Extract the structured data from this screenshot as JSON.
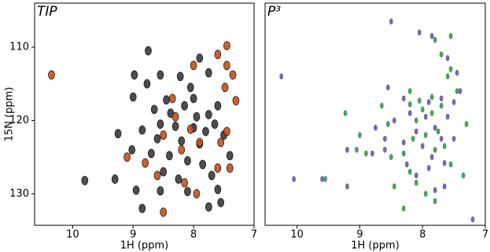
{
  "chart_data": [
    {
      "type": "scatter",
      "title": "TIP",
      "x_label": "1H (ppm)",
      "y_label": "15N (ppm)",
      "xlim": [
        10.63,
        7.0
      ],
      "ylim": [
        104,
        134.3
      ],
      "xticks": [
        10,
        9,
        8,
        7
      ],
      "yticks": [
        110,
        120,
        130
      ],
      "series": [
        {
          "color": "#3a3a3a",
          "x": [
            8.98,
            8.55,
            8.77,
            9.0,
            8.22,
            8.05,
            8.45,
            8.65,
            8.38,
            8.15,
            7.95,
            7.75,
            7.6,
            8.55,
            8.3,
            8.0,
            7.8,
            7.65,
            8.85,
            8.6,
            8.2,
            7.9,
            7.5,
            9.02,
            8.7,
            8.4,
            8.1,
            7.85,
            8.5,
            8.25,
            7.7,
            9.8,
            9.3,
            8.95,
            8.55,
            8.1,
            7.6,
            7.75,
            7.9,
            8.75,
            7.4,
            8.0,
            9.25,
            7.55,
            8.85,
            7.75
          ],
          "y": [
            113.8,
            113.8,
            115.0,
            116.8,
            114.0,
            115.5,
            117.2,
            118.5,
            119.0,
            118.0,
            119.5,
            119.2,
            118.0,
            120.5,
            120.8,
            121.0,
            121.5,
            120.5,
            121.3,
            122.5,
            122.8,
            123.2,
            122.0,
            124.0,
            124.5,
            124.8,
            125.5,
            126.0,
            127.0,
            128.0,
            127.5,
            128.2,
            128.0,
            129.5,
            129.6,
            129.7,
            129.4,
            113.5,
            111.5,
            110.5,
            124.8,
            117.0,
            121.8,
            131.2,
            132.0,
            131.8
          ]
        },
        {
          "color": "#c4501a",
          "x": [
            7.45,
            7.6,
            7.45,
            7.35,
            7.48,
            7.3,
            8.35,
            8.05,
            7.45,
            7.55,
            8.5,
            8.2,
            7.4,
            7.6,
            8.8,
            8.6,
            8.15,
            8.5,
            7.95,
            10.35,
            9.1,
            8.0,
            7.9,
            8.3
          ],
          "y": [
            109.8,
            111.0,
            112.5,
            113.8,
            115.5,
            117.3,
            117.0,
            121.2,
            121.5,
            123.0,
            122.0,
            124.0,
            126.5,
            126.5,
            125.8,
            127.5,
            128.5,
            132.5,
            130.0,
            113.8,
            125.0,
            112.5,
            123.0,
            119.5
          ]
        }
      ]
    },
    {
      "type": "scatter",
      "title": "P³",
      "x_label": "1H (ppm)",
      "xlim": [
        10.51,
        7.0
      ],
      "ylim": [
        104,
        134.3
      ],
      "xticks": [
        10,
        9,
        8,
        7
      ],
      "series": [
        {
          "color": "#3a9a4a",
          "x": [
            8.55,
            8.2,
            8.05,
            7.85,
            7.6,
            7.55,
            7.7,
            7.8,
            7.55,
            9.23,
            9.0,
            8.0,
            7.85,
            8.1,
            7.95,
            7.75,
            7.3,
            7.65,
            8.9,
            8.5,
            8.3,
            7.8,
            7.55,
            8.2,
            7.35,
            9.05,
            8.45,
            7.95,
            7.8,
            8.1,
            9.55,
            8.3,
            8.2,
            8.15,
            7.7,
            8.65,
            7.45
          ],
          "y": [
            120.5,
            117.8,
            117.3,
            116.8,
            114.0,
            113.0,
            111.0,
            109.0,
            108.5,
            119.0,
            122.0,
            118.5,
            119.0,
            120.0,
            122.0,
            121.5,
            120.5,
            123.5,
            124.5,
            125.0,
            124.5,
            124.0,
            126.0,
            127.0,
            127.5,
            124.0,
            129.0,
            130.0,
            131.0,
            128.5,
            128.0,
            132.0,
            116.0,
            122.5,
            118.0,
            118.0,
            116.0
          ]
        },
        {
          "color": "#6a5aa8",
          "x": [
            10.25,
            10.05,
            9.6,
            9.2,
            8.5,
            8.05,
            7.85,
            7.6,
            7.45,
            7.4,
            7.5,
            7.7,
            7.9,
            8.3,
            8.55,
            8.2,
            7.95,
            7.6,
            8.45,
            8.75,
            8.1,
            7.8,
            7.5,
            7.7,
            8.6,
            8.3,
            8.0,
            7.85,
            8.6,
            8.8,
            8.25,
            7.65,
            8.1,
            7.9,
            7.65,
            7.8,
            9.2,
            7.2
          ],
          "y": [
            114.0,
            128.0,
            128.0,
            129.0,
            106.5,
            108.0,
            108.5,
            111.5,
            113.5,
            116.0,
            117.5,
            117.0,
            117.5,
            117.0,
            115.5,
            119.0,
            119.5,
            119.5,
            120.0,
            121.0,
            121.5,
            121.0,
            122.5,
            122.5,
            122.5,
            123.0,
            123.5,
            125.0,
            124.0,
            124.5,
            126.0,
            125.8,
            127.5,
            126.5,
            129.0,
            129.5,
            124.0,
            133.5
          ]
        }
      ]
    }
  ]
}
